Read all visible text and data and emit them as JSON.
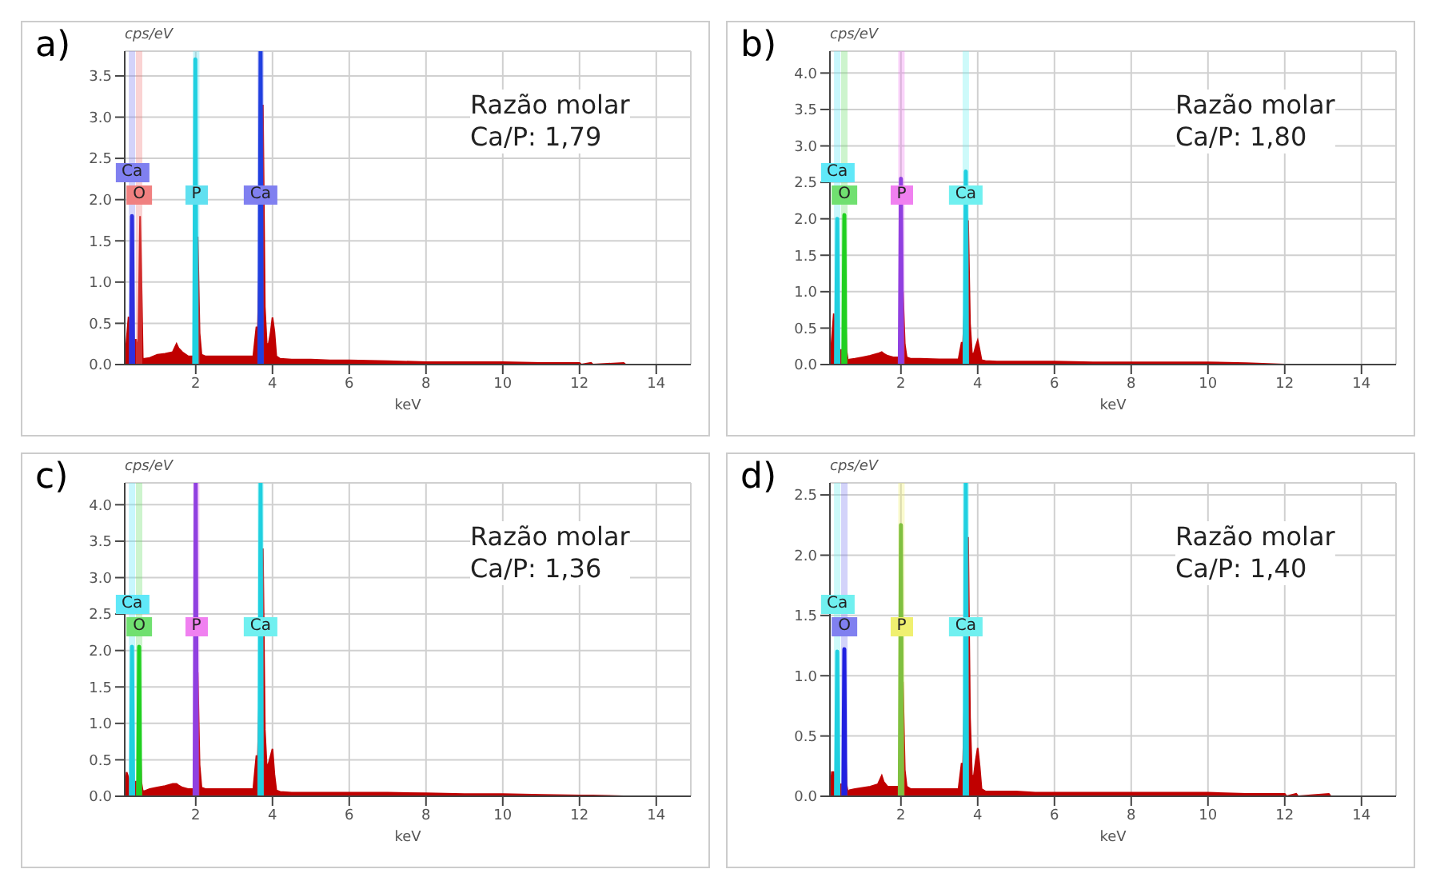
{
  "chart_data": [
    {
      "type": "area",
      "title": "a)",
      "xlabel": "keV",
      "ylabel": "cps/eV",
      "annotations": [
        "Razão molar\nCa/P: 1,79"
      ],
      "grid": true,
      "xlim": [
        0.15,
        14.9
      ],
      "xticks": [
        2,
        4,
        6,
        8,
        10,
        12,
        14
      ],
      "ylim": [
        0,
        3.8
      ],
      "yticks": [
        {
          "value": 0,
          "label": "0.0"
        },
        0.5,
        {
          "value": 1,
          "label": "1.0"
        },
        1.5,
        {
          "value": 2,
          "label": "2.0"
        },
        2.5,
        {
          "value": 3,
          "label": "3.0"
        },
        3.5
      ],
      "series": [
        {
          "type": "area",
          "color": "#c00000",
          "x": [
            0.15,
            0.2,
            0.25,
            0.28,
            0.3,
            0.38,
            0.45,
            0.5,
            0.55,
            0.58,
            0.62,
            0.66,
            0.8,
            1.0,
            1.2,
            1.4,
            1.5,
            1.55,
            1.65,
            1.8,
            1.9,
            1.95,
            2.05,
            2.1,
            2.15,
            2.25,
            2.5,
            3.0,
            3.5,
            3.58,
            3.62,
            3.75,
            3.8,
            3.85,
            3.9,
            3.95,
            4.0,
            4.05,
            4.1,
            4.2,
            4.5,
            5.0,
            5.5,
            6.0,
            7.0,
            8.0,
            9.0,
            10.0,
            11.0,
            12.0,
            12.05,
            12.3,
            12.35,
            13.15,
            13.2,
            14.9
          ],
          "values": [
            0,
            0.3,
            0.58,
            0.05,
            0.05,
            0.3,
            0.3,
            0.15,
            1.8,
            1.15,
            0.07,
            0.07,
            0.08,
            0.12,
            0.13,
            0.15,
            0.25,
            0.2,
            0.15,
            0.1,
            0.1,
            0.1,
            1.55,
            0.38,
            0.12,
            0.1,
            0.1,
            0.1,
            0.1,
            0.45,
            0.45,
            3.15,
            0.7,
            0.25,
            0.25,
            0.38,
            0.57,
            0.4,
            0.1,
            0.07,
            0.06,
            0.06,
            0.05,
            0.05,
            0.04,
            0.03,
            0.03,
            0.03,
            0.02,
            0.02,
            0,
            0.02,
            0,
            0.02,
            0,
            0
          ]
        },
        {
          "type": "line",
          "color": "#3030e0",
          "x": [
            0.31,
            0.34,
            0.37
          ],
          "values": [
            0,
            1.8,
            0
          ]
        },
        {
          "type": "line",
          "color": "#20d0e0",
          "x": [
            1.96,
            1.99,
            2.02
          ],
          "values": [
            0,
            3.7,
            0
          ]
        },
        {
          "type": "line",
          "color": "#2040e0",
          "x": [
            3.66,
            3.69,
            3.72
          ],
          "values": [
            0,
            3.8,
            0
          ]
        }
      ],
      "ref_lines": [
        {
          "axis": "x",
          "value": 0.34,
          "label": "Ca",
          "color": "#8080f0"
        },
        {
          "axis": "x",
          "value": 0.525,
          "label": "O",
          "color": "#f08080"
        },
        {
          "axis": "x",
          "value": 2.013,
          "label": "P",
          "color": "#60e0f0"
        },
        {
          "axis": "x",
          "value": 3.69,
          "label": "Ca",
          "color": "#8080f0"
        }
      ]
    },
    {
      "type": "area",
      "title": "b)",
      "xlabel": "keV",
      "ylabel": "cps/eV",
      "annotations": [
        "Razão molar\nCa/P: 1,80"
      ],
      "grid": true,
      "xlim": [
        0.15,
        14.9
      ],
      "xticks": [
        2,
        4,
        6,
        8,
        10,
        12,
        14
      ],
      "ylim": [
        0,
        4.3
      ],
      "yticks": [
        {
          "value": 0,
          "label": "0.0"
        },
        0.5,
        {
          "value": 1,
          "label": "1.0"
        },
        1.5,
        {
          "value": 2,
          "label": "2.0"
        },
        2.5,
        {
          "value": 3,
          "label": "3.0"
        },
        3.5,
        {
          "value": 4,
          "label": "4.0"
        }
      ],
      "series": [
        {
          "type": "area",
          "color": "#c00000",
          "x": [
            0.15,
            0.2,
            0.25,
            0.28,
            0.3,
            0.38,
            0.45,
            0.5,
            0.55,
            0.58,
            0.62,
            0.66,
            0.8,
            1.0,
            1.2,
            1.4,
            1.5,
            1.55,
            1.65,
            1.8,
            1.9,
            1.95,
            2.05,
            2.1,
            2.15,
            2.25,
            2.5,
            3.0,
            3.5,
            3.58,
            3.62,
            3.75,
            3.8,
            3.85,
            3.9,
            3.95,
            4.0,
            4.05,
            4.1,
            4.2,
            4.5,
            5.0,
            5.5,
            6.0,
            7.0,
            8.0,
            9.0,
            10.0,
            11.0,
            12.0,
            12.05,
            12.3,
            12.35,
            13.15,
            13.2,
            14.9
          ],
          "values": [
            0,
            0.35,
            0.7,
            0.05,
            0.05,
            0.2,
            0.2,
            0.1,
            0.8,
            0.2,
            0.05,
            0.07,
            0.08,
            0.1,
            0.12,
            0.15,
            0.17,
            0.15,
            0.12,
            0.1,
            0.1,
            0.1,
            1.0,
            0.28,
            0.1,
            0.08,
            0.08,
            0.07,
            0.07,
            0.3,
            0.3,
            1.98,
            0.56,
            0.15,
            0.15,
            0.25,
            0.33,
            0.2,
            0.06,
            0.05,
            0.04,
            0.04,
            0.04,
            0.04,
            0.03,
            0.03,
            0.03,
            0.03,
            0.02,
            0,
            0,
            0,
            0,
            0,
            0,
            0
          ]
        },
        {
          "type": "line",
          "color": "#20d0e0",
          "x": [
            0.31,
            0.34,
            0.37
          ],
          "values": [
            0,
            2.0,
            0
          ]
        },
        {
          "type": "line",
          "color": "#20d020",
          "x": [
            0.5,
            0.525,
            0.55
          ],
          "values": [
            0,
            2.05,
            0
          ]
        },
        {
          "type": "line",
          "color": "#9040e0",
          "x": [
            1.97,
            2.0,
            2.03
          ],
          "values": [
            0,
            2.55,
            0
          ]
        },
        {
          "type": "line",
          "color": "#20d0e0",
          "x": [
            3.66,
            3.69,
            3.72
          ],
          "values": [
            0,
            2.65,
            0
          ]
        }
      ],
      "ref_lines": [
        {
          "axis": "x",
          "value": 0.34,
          "label": "Ca",
          "color": "#60e8f8"
        },
        {
          "axis": "x",
          "value": 0.525,
          "label": "O",
          "color": "#70e070"
        },
        {
          "axis": "x",
          "value": 2.013,
          "label": "P",
          "color": "#f080f0"
        },
        {
          "axis": "x",
          "value": 3.69,
          "label": "Ca",
          "color": "#70f0f0"
        }
      ]
    },
    {
      "type": "area",
      "title": "c)",
      "xlabel": "keV",
      "ylabel": "cps/eV",
      "annotations": [
        "Razão molar\nCa/P: 1,36"
      ],
      "grid": true,
      "xlim": [
        0.15,
        14.9
      ],
      "xticks": [
        2,
        4,
        6,
        8,
        10,
        12,
        14
      ],
      "ylim": [
        0,
        4.3
      ],
      "yticks": [
        {
          "value": 0,
          "label": "0.0"
        },
        0.5,
        {
          "value": 1,
          "label": "1.0"
        },
        1.5,
        {
          "value": 2,
          "label": "2.0"
        },
        2.5,
        {
          "value": 3,
          "label": "3.0"
        },
        3.5,
        {
          "value": 4,
          "label": "4.0"
        }
      ],
      "series": [
        {
          "type": "area",
          "color": "#c00000",
          "x": [
            0.15,
            0.2,
            0.25,
            0.28,
            0.3,
            0.38,
            0.45,
            0.5,
            0.55,
            0.58,
            0.62,
            0.66,
            0.8,
            1.0,
            1.2,
            1.4,
            1.5,
            1.55,
            1.65,
            1.8,
            1.9,
            1.95,
            2.05,
            2.1,
            2.15,
            2.25,
            2.5,
            3.0,
            3.5,
            3.58,
            3.62,
            3.75,
            3.8,
            3.85,
            3.9,
            3.95,
            4.0,
            4.05,
            4.1,
            4.2,
            4.5,
            5.0,
            5.5,
            6.0,
            7.0,
            8.0,
            9.0,
            10.0,
            11.0,
            12.0,
            12.05,
            12.3,
            12.35,
            13.15,
            13.2,
            14.9
          ],
          "values": [
            0,
            0.33,
            0.25,
            0.05,
            0.05,
            0.2,
            0.2,
            0.1,
            0.95,
            0.2,
            0.07,
            0.07,
            0.1,
            0.12,
            0.14,
            0.17,
            0.17,
            0.15,
            0.12,
            0.1,
            0.1,
            0.1,
            1.7,
            0.43,
            0.12,
            0.1,
            0.1,
            0.1,
            0.1,
            0.55,
            0.55,
            3.4,
            0.92,
            0.4,
            0.45,
            0.55,
            0.65,
            0.3,
            0.08,
            0.06,
            0.05,
            0.05,
            0.05,
            0.05,
            0.05,
            0.04,
            0.03,
            0.03,
            0.02,
            0.01,
            0.01,
            0.01,
            0.01,
            0,
            0,
            0
          ]
        },
        {
          "type": "line",
          "color": "#20d0e0",
          "x": [
            0.31,
            0.34,
            0.37
          ],
          "values": [
            0,
            2.05,
            0
          ]
        },
        {
          "type": "line",
          "color": "#20d020",
          "x": [
            0.5,
            0.525,
            0.55
          ],
          "values": [
            0,
            2.05,
            0
          ]
        },
        {
          "type": "line",
          "color": "#9040e0",
          "x": [
            1.97,
            2.0,
            2.03
          ],
          "values": [
            0,
            4.3,
            0
          ]
        },
        {
          "type": "line",
          "color": "#20d0e0",
          "x": [
            3.66,
            3.69,
            3.72
          ],
          "values": [
            0,
            4.3,
            0
          ]
        }
      ],
      "ref_lines": [
        {
          "axis": "x",
          "value": 0.34,
          "label": "Ca",
          "color": "#60e8f8"
        },
        {
          "axis": "x",
          "value": 0.525,
          "label": "O",
          "color": "#70e070"
        },
        {
          "axis": "x",
          "value": 2.013,
          "label": "P",
          "color": "#f080f0"
        },
        {
          "axis": "x",
          "value": 3.69,
          "label": "Ca",
          "color": "#70f0f0"
        }
      ]
    },
    {
      "type": "area",
      "title": "d)",
      "xlabel": "keV",
      "ylabel": "cps/eV",
      "annotations": [
        "Razão molar\nCa/P: 1,40"
      ],
      "grid": true,
      "xlim": [
        0.15,
        14.9
      ],
      "xticks": [
        2,
        4,
        6,
        8,
        10,
        12,
        14
      ],
      "ylim": [
        0,
        2.6
      ],
      "yticks": [
        {
          "value": 0,
          "label": "0.0"
        },
        0.5,
        {
          "value": 1,
          "label": "1.0"
        },
        1.5,
        {
          "value": 2,
          "label": "2.0"
        },
        2.5
      ],
      "series": [
        {
          "type": "area",
          "color": "#c00000",
          "x": [
            0.15,
            0.2,
            0.25,
            0.28,
            0.3,
            0.38,
            0.45,
            0.5,
            0.55,
            0.58,
            0.62,
            0.66,
            0.8,
            1.0,
            1.2,
            1.4,
            1.5,
            1.55,
            1.65,
            1.8,
            1.9,
            1.95,
            2.05,
            2.1,
            2.15,
            2.25,
            2.5,
            3.0,
            3.5,
            3.58,
            3.62,
            3.75,
            3.8,
            3.85,
            3.9,
            3.95,
            4.0,
            4.05,
            4.1,
            4.2,
            4.5,
            5.0,
            5.5,
            6.0,
            7.0,
            8.0,
            9.0,
            10.0,
            11.0,
            12.0,
            12.05,
            12.3,
            12.35,
            13.15,
            13.2,
            14.9
          ],
          "values": [
            0,
            0.2,
            0.2,
            0.03,
            0.03,
            0.1,
            0.1,
            0.05,
            0.53,
            0.1,
            0.03,
            0.05,
            0.06,
            0.07,
            0.08,
            0.1,
            0.17,
            0.12,
            0.08,
            0.08,
            0.08,
            0.08,
            0.95,
            0.22,
            0.08,
            0.06,
            0.06,
            0.06,
            0.06,
            0.27,
            0.27,
            2.15,
            0.65,
            0.17,
            0.17,
            0.3,
            0.4,
            0.25,
            0.06,
            0.04,
            0.04,
            0.04,
            0.03,
            0.03,
            0.03,
            0.03,
            0.03,
            0.03,
            0.02,
            0.02,
            0,
            0.02,
            0,
            0.02,
            0,
            0
          ]
        },
        {
          "type": "line",
          "color": "#20d0e0",
          "x": [
            0.31,
            0.34,
            0.37
          ],
          "values": [
            0,
            1.2,
            0
          ]
        },
        {
          "type": "line",
          "color": "#2020e0",
          "x": [
            0.5,
            0.525,
            0.55
          ],
          "values": [
            0,
            1.22,
            0
          ]
        },
        {
          "type": "line",
          "color": "#80c040",
          "x": [
            1.97,
            2.0,
            2.03
          ],
          "values": [
            0,
            2.25,
            0
          ]
        },
        {
          "type": "line",
          "color": "#20d0e0",
          "x": [
            3.66,
            3.69,
            3.72
          ],
          "values": [
            0,
            2.6,
            0
          ]
        }
      ],
      "ref_lines": [
        {
          "axis": "x",
          "value": 0.34,
          "label": "Ca",
          "color": "#70f0f0"
        },
        {
          "axis": "x",
          "value": 0.525,
          "label": "O",
          "color": "#8080f0"
        },
        {
          "axis": "x",
          "value": 2.013,
          "label": "P",
          "color": "#f0f070"
        },
        {
          "axis": "x",
          "value": 3.69,
          "label": "Ca",
          "color": "#70f0f0"
        }
      ]
    }
  ]
}
